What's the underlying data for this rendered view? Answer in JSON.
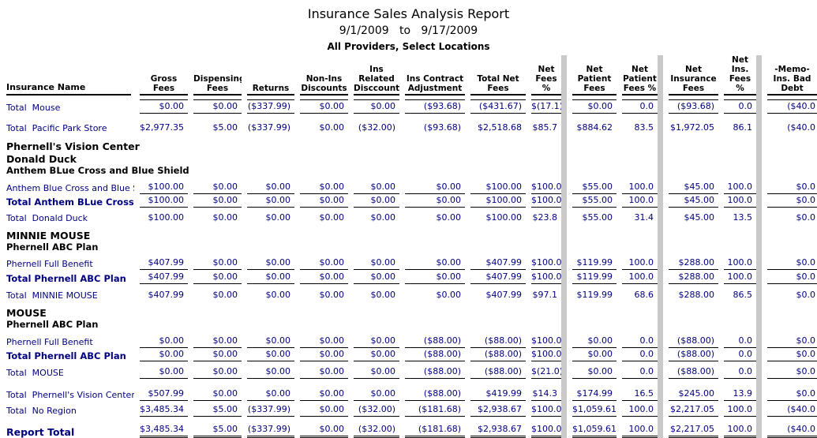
{
  "colors": {
    "data_text": "#000080",
    "heading_text": "#000000",
    "separator_bar": "#c9c9c9"
  },
  "report": {
    "title": "Insurance Sales Analysis Report",
    "date_range": "9/1/2009   to   9/17/2009",
    "subtitle": "All Providers, Select Locations"
  },
  "table": {
    "name_header": "Insurance Name",
    "columns": [
      "Gross  Fees",
      "Dispensing\nFees",
      "Returns",
      "Non-Ins\nDiscounts",
      "Ins Related\nDisccounts",
      "Ins Contract\nAdjustment",
      "Total Net\nFees",
      "Net\nFees %",
      "Net Patient\nFees",
      "Net\nPatient\nFees %",
      "Net\nInsurance\nFees",
      "Net\nIns.\nFees %",
      "-Memo-\nIns. Bad\nDebt"
    ],
    "rows": [
      {
        "type": "data",
        "label": "Total  Mouse",
        "bold": false,
        "rules": "tb",
        "pad": 5,
        "values": [
          "$0.00",
          "$0.00",
          "($337.99)",
          "$0.00",
          "$0.00",
          "($93.68)",
          "($431.67)",
          "$(17.1)",
          "$0.00",
          "0.0",
          "($93.68)",
          "0.0",
          "($40.0"
        ]
      },
      {
        "type": "data",
        "label": "Total  Pacific Park Store",
        "bold": false,
        "rules": "",
        "pad": 10,
        "values": [
          "$2,977.35",
          "$5.00",
          "($337.99)",
          "$0.00",
          "($32.00)",
          "($93.68)",
          "$2,518.68",
          "$85.7",
          "$884.62",
          "83.5",
          "$1,972.05",
          "86.1",
          "($40.0"
        ]
      },
      {
        "type": "heading",
        "level": 1,
        "label": "Phernell's Vision Center",
        "pad": 8
      },
      {
        "type": "heading",
        "level": 1,
        "label": "Donald Duck",
        "pad": 1
      },
      {
        "type": "heading",
        "level": 2,
        "label": "Anthem BLue Cross and Blue Shield",
        "pad": 0
      },
      {
        "type": "data",
        "label": "Anthem Blue Cross and Blue Shi",
        "bold": false,
        "rules": "b",
        "pad": 6,
        "values": [
          "$100.00",
          "$0.00",
          "$0.00",
          "$0.00",
          "$0.00",
          "$0.00",
          "$100.00",
          "$100.0",
          "$55.00",
          "100.0",
          "$45.00",
          "100.0",
          "$0.0"
        ]
      },
      {
        "type": "data",
        "label": "Total Anthem BLue Cross an",
        "bold": true,
        "rules": "b",
        "pad": 0,
        "values": [
          "$100.00",
          "$0.00",
          "$0.00",
          "$0.00",
          "$0.00",
          "$0.00",
          "$100.00",
          "$100.0",
          "$55.00",
          "100.0",
          "$45.00",
          "100.0",
          "$0.0"
        ]
      },
      {
        "type": "data",
        "label": "Total  Donald Duck",
        "bold": false,
        "rules": "",
        "pad": 5,
        "values": [
          "$100.00",
          "$0.00",
          "$0.00",
          "$0.00",
          "$0.00",
          "$0.00",
          "$100.00",
          "$23.8",
          "$55.00",
          "31.4",
          "$45.00",
          "13.5",
          "$0.0"
        ]
      },
      {
        "type": "heading",
        "level": 1,
        "label": "MINNIE MOUSE",
        "pad": 7
      },
      {
        "type": "heading",
        "level": 2,
        "label": "Phernell ABC Plan",
        "pad": 0
      },
      {
        "type": "data",
        "label": "Phernell Full Benefit",
        "bold": false,
        "rules": "b",
        "pad": 5,
        "values": [
          "$407.99",
          "$0.00",
          "$0.00",
          "$0.00",
          "$0.00",
          "$0.00",
          "$407.99",
          "$100.0",
          "$119.99",
          "100.0",
          "$288.00",
          "100.0",
          "$0.0"
        ]
      },
      {
        "type": "data",
        "label": "Total Phernell ABC Plan",
        "bold": true,
        "rules": "b",
        "pad": 1,
        "values": [
          "$407.99",
          "$0.00",
          "$0.00",
          "$0.00",
          "$0.00",
          "$0.00",
          "$407.99",
          "$100.0",
          "$119.99",
          "100.0",
          "$288.00",
          "100.0",
          "$0.0"
        ]
      },
      {
        "type": "data",
        "label": "Total  MINNIE MOUSE",
        "bold": false,
        "rules": "",
        "pad": 6,
        "values": [
          "$407.99",
          "$0.00",
          "$0.00",
          "$0.00",
          "$0.00",
          "$0.00",
          "$407.99",
          "$97.1",
          "$119.99",
          "68.6",
          "$288.00",
          "86.5",
          "$0.0"
        ]
      },
      {
        "type": "heading",
        "level": 1,
        "label": "MOUSE",
        "pad": 7
      },
      {
        "type": "heading",
        "level": 2,
        "label": "Phernell ABC Plan",
        "pad": 0
      },
      {
        "type": "data",
        "label": "Phernell Full Benefit",
        "bold": false,
        "rules": "b",
        "pad": 6,
        "values": [
          "$0.00",
          "$0.00",
          "$0.00",
          "$0.00",
          "$0.00",
          "($88.00)",
          "($88.00)",
          "$100.0",
          "$0.00",
          "0.0",
          "($88.00)",
          "0.0",
          "$0.0"
        ]
      },
      {
        "type": "data",
        "label": "Total Phernell ABC Plan",
        "bold": true,
        "rules": "b",
        "pad": 0,
        "values": [
          "$0.00",
          "$0.00",
          "$0.00",
          "$0.00",
          "$0.00",
          "($88.00)",
          "($88.00)",
          "$100.0",
          "$0.00",
          "0.0",
          "($88.00)",
          "0.0",
          "$0.0"
        ]
      },
      {
        "type": "data",
        "label": "Total  MOUSE",
        "bold": false,
        "rules": "b",
        "pad": 5,
        "values": [
          "$0.00",
          "$0.00",
          "$0.00",
          "$0.00",
          "$0.00",
          "($88.00)",
          "($88.00)",
          "$(21.0)",
          "$0.00",
          "0.0",
          "($88.00)",
          "0.0",
          "$0.0"
        ]
      },
      {
        "type": "data",
        "label": "Total  Phernell's Vision Center",
        "bold": false,
        "rules": "b",
        "pad": 11,
        "values": [
          "$507.99",
          "$0.00",
          "$0.00",
          "$0.00",
          "$0.00",
          "($88.00)",
          "$419.99",
          "$14.3",
          "$174.99",
          "16.5",
          "$245.00",
          "13.9",
          "$0.0"
        ]
      },
      {
        "type": "data",
        "label": "Total  No Region",
        "bold": false,
        "rules": "b",
        "pad": 3,
        "values": [
          "$3,485.34",
          "$5.00",
          "($337.99)",
          "$0.00",
          "($32.00)",
          "($181.68)",
          "$2,938.67",
          "$100.0",
          "$1,059.61",
          "100.0",
          "$2,217.05",
          "100.0",
          "($40.0"
        ]
      },
      {
        "type": "data",
        "label": "Report Total",
        "bold": true,
        "big": true,
        "rules": "dbl",
        "pad": 8,
        "values": [
          "$3,485.34",
          "$5.00",
          "($337.99)",
          "$0.00",
          "($32.00)",
          "($181.68)",
          "$2,938.67",
          "$100.0",
          "$1,059.61",
          "100.0",
          "$2,217.05",
          "100.0",
          "($40.0"
        ]
      }
    ]
  }
}
